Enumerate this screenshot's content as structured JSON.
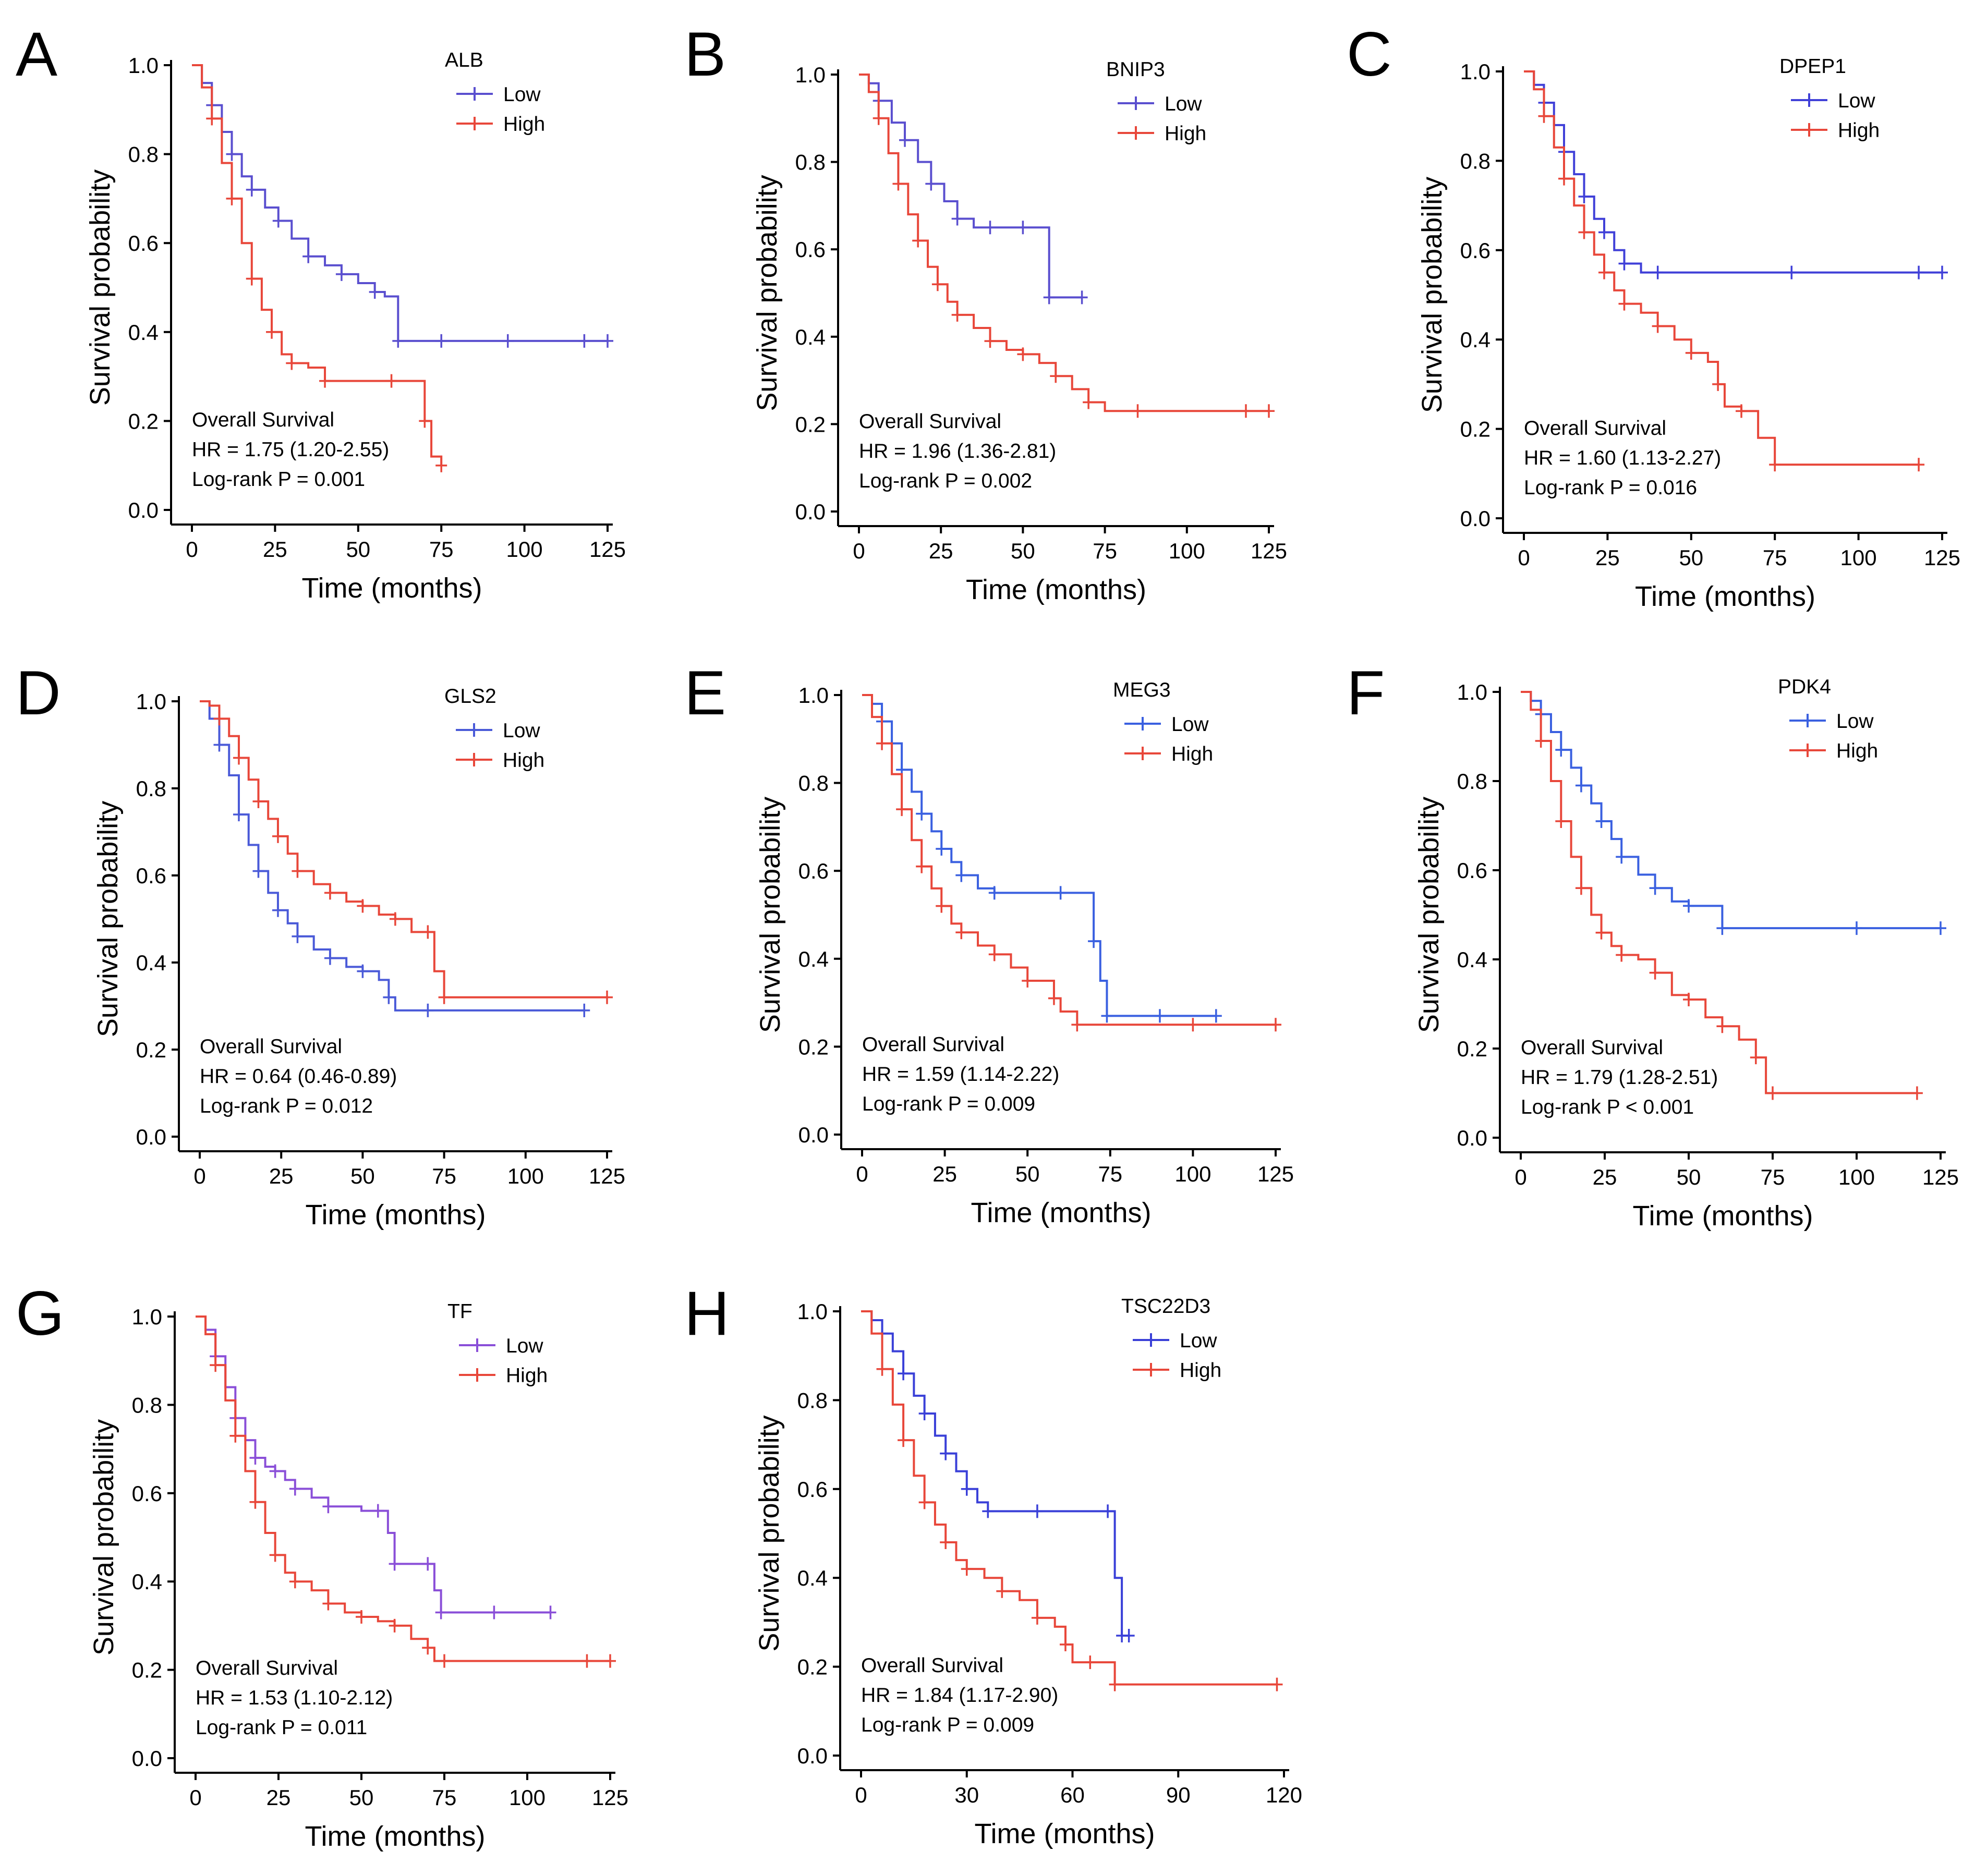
{
  "figure": {
    "shared": {
      "ylabel": "Survival probability",
      "xlabel": "Time (months)",
      "y_ticks": [
        "0.0",
        "0.2",
        "0.4",
        "0.6",
        "0.8",
        "1.0"
      ],
      "legend_low": "Low",
      "legend_high": "High",
      "stat_title": "Overall Survival"
    },
    "colors": {
      "low": "#5a4fcf",
      "high": "#e8473a"
    }
  },
  "chart_data": [
    {
      "panel": "A",
      "type": "line",
      "title": "ALB",
      "xlabel": "Time (months)",
      "ylabel": "Survival probability",
      "xlim": [
        0,
        125
      ],
      "ylim": [
        0,
        1
      ],
      "x_ticks": [
        0,
        25,
        50,
        75,
        100,
        125
      ],
      "legend": "top-right",
      "low_color": "#5a4fcf",
      "hr_text": "HR = 1.75 (1.20-2.55)",
      "p_text": "Log-rank P = 0.001",
      "series": [
        {
          "name": "Low",
          "x": [
            0,
            3,
            6,
            9,
            12,
            15,
            18,
            22,
            26,
            30,
            35,
            40,
            45,
            50,
            55,
            58,
            62,
            68,
            75,
            85,
            95,
            105,
            118,
            125
          ],
          "y": [
            1,
            0.96,
            0.91,
            0.85,
            0.8,
            0.75,
            0.72,
            0.68,
            0.65,
            0.61,
            0.57,
            0.55,
            0.53,
            0.51,
            0.49,
            0.48,
            0.38,
            0.38,
            0.38,
            0.38,
            0.38,
            0.38,
            0.38,
            0.38
          ]
        },
        {
          "name": "High",
          "x": [
            0,
            3,
            6,
            9,
            12,
            15,
            18,
            21,
            24,
            27,
            30,
            35,
            40,
            50,
            60,
            65,
            70,
            72,
            75
          ],
          "y": [
            1,
            0.95,
            0.88,
            0.78,
            0.7,
            0.6,
            0.52,
            0.45,
            0.4,
            0.35,
            0.33,
            0.32,
            0.29,
            0.29,
            0.29,
            0.29,
            0.2,
            0.12,
            0.1
          ]
        }
      ]
    },
    {
      "panel": "B",
      "type": "line",
      "title": "BNIP3",
      "xlabel": "Time (months)",
      "ylabel": "Survival probability",
      "xlim": [
        0,
        125
      ],
      "ylim": [
        0,
        1
      ],
      "x_ticks": [
        0,
        25,
        50,
        75,
        100,
        125
      ],
      "legend": "top-right",
      "low_color": "#5a4fcf",
      "hr_text": "HR = 1.96 (1.36-2.81)",
      "p_text": "Log-rank P = 0.002",
      "series": [
        {
          "name": "Low",
          "x": [
            0,
            3,
            6,
            10,
            14,
            18,
            22,
            26,
            30,
            35,
            40,
            45,
            50,
            55,
            58,
            62,
            68
          ],
          "y": [
            1,
            0.98,
            0.94,
            0.89,
            0.85,
            0.8,
            0.75,
            0.71,
            0.67,
            0.65,
            0.65,
            0.65,
            0.65,
            0.65,
            0.49,
            0.49,
            0.49
          ]
        },
        {
          "name": "High",
          "x": [
            0,
            3,
            6,
            9,
            12,
            15,
            18,
            21,
            24,
            27,
            30,
            35,
            40,
            45,
            50,
            55,
            60,
            65,
            70,
            75,
            85,
            100,
            118,
            125
          ],
          "y": [
            1,
            0.96,
            0.9,
            0.82,
            0.75,
            0.68,
            0.62,
            0.56,
            0.52,
            0.48,
            0.45,
            0.42,
            0.39,
            0.37,
            0.36,
            0.34,
            0.31,
            0.28,
            0.25,
            0.23,
            0.23,
            0.23,
            0.23,
            0.23
          ]
        }
      ]
    },
    {
      "panel": "C",
      "type": "line",
      "title": "DPEP1",
      "xlabel": "Time (months)",
      "ylabel": "Survival probability",
      "xlim": [
        0,
        125
      ],
      "ylim": [
        0,
        1
      ],
      "x_ticks": [
        0,
        25,
        50,
        75,
        100,
        125
      ],
      "legend": "top-right",
      "low_color": "#4040d8",
      "hr_text": "HR = 1.60 (1.13-2.27)",
      "p_text": "Log-rank P = 0.016",
      "series": [
        {
          "name": "Low",
          "x": [
            0,
            3,
            6,
            9,
            12,
            15,
            18,
            21,
            24,
            27,
            30,
            35,
            40,
            60,
            80,
            100,
            118,
            125
          ],
          "y": [
            1,
            0.97,
            0.93,
            0.88,
            0.82,
            0.77,
            0.72,
            0.67,
            0.64,
            0.6,
            0.57,
            0.55,
            0.55,
            0.55,
            0.55,
            0.55,
            0.55,
            0.55
          ]
        },
        {
          "name": "High",
          "x": [
            0,
            3,
            6,
            9,
            12,
            15,
            18,
            21,
            24,
            27,
            30,
            35,
            40,
            45,
            50,
            55,
            58,
            60,
            65,
            70,
            75,
            100,
            118
          ],
          "y": [
            1,
            0.96,
            0.9,
            0.83,
            0.76,
            0.7,
            0.64,
            0.59,
            0.55,
            0.51,
            0.48,
            0.46,
            0.43,
            0.4,
            0.37,
            0.35,
            0.3,
            0.25,
            0.24,
            0.18,
            0.12,
            0.12,
            0.12
          ]
        }
      ]
    },
    {
      "panel": "D",
      "type": "line",
      "title": "GLS2",
      "xlabel": "Time (months)",
      "ylabel": "Survival probability",
      "xlim": [
        0,
        125
      ],
      "ylim": [
        0,
        1
      ],
      "x_ticks": [
        0,
        25,
        50,
        75,
        100,
        125
      ],
      "legend": "top-right",
      "low_color": "#4a5ad8",
      "hr_text": "HR = 0.64 (0.46-0.89)",
      "p_text": "Log-rank P = 0.012",
      "series": [
        {
          "name": "Low",
          "x": [
            0,
            3,
            6,
            9,
            12,
            15,
            18,
            21,
            24,
            27,
            30,
            35,
            40,
            45,
            50,
            55,
            58,
            60,
            70,
            90,
            118
          ],
          "y": [
            1,
            0.96,
            0.9,
            0.83,
            0.74,
            0.67,
            0.61,
            0.56,
            0.52,
            0.49,
            0.46,
            0.43,
            0.41,
            0.39,
            0.38,
            0.36,
            0.32,
            0.29,
            0.29,
            0.29,
            0.29
          ]
        },
        {
          "name": "High",
          "x": [
            0,
            3,
            6,
            9,
            12,
            15,
            18,
            21,
            24,
            27,
            30,
            35,
            40,
            45,
            50,
            55,
            60,
            65,
            70,
            72,
            75,
            100,
            125
          ],
          "y": [
            1,
            0.99,
            0.96,
            0.92,
            0.87,
            0.82,
            0.77,
            0.73,
            0.69,
            0.65,
            0.61,
            0.58,
            0.56,
            0.54,
            0.53,
            0.51,
            0.5,
            0.47,
            0.47,
            0.38,
            0.32,
            0.32,
            0.32
          ]
        }
      ]
    },
    {
      "panel": "E",
      "type": "line",
      "title": "MEG3",
      "xlabel": "Time (months)",
      "ylabel": "Survival probability",
      "xlim": [
        0,
        125
      ],
      "ylim": [
        0,
        1
      ],
      "x_ticks": [
        0,
        25,
        50,
        75,
        100,
        125
      ],
      "legend": "top-right",
      "low_color": "#3a60e0",
      "hr_text": "HR = 1.59 (1.14-2.22)",
      "p_text": "Log-rank P = 0.009",
      "series": [
        {
          "name": "Low",
          "x": [
            0,
            3,
            6,
            9,
            12,
            15,
            18,
            21,
            24,
            27,
            30,
            35,
            40,
            50,
            60,
            65,
            70,
            72,
            74,
            80,
            90,
            100,
            107
          ],
          "y": [
            1,
            0.98,
            0.94,
            0.89,
            0.83,
            0.78,
            0.73,
            0.69,
            0.65,
            0.62,
            0.59,
            0.56,
            0.55,
            0.55,
            0.55,
            0.55,
            0.44,
            0.35,
            0.27,
            0.27,
            0.27,
            0.27,
            0.27
          ]
        },
        {
          "name": "High",
          "x": [
            0,
            3,
            6,
            9,
            12,
            15,
            18,
            21,
            24,
            27,
            30,
            35,
            40,
            45,
            50,
            55,
            58,
            60,
            65,
            75,
            100,
            118,
            125
          ],
          "y": [
            1,
            0.95,
            0.89,
            0.82,
            0.74,
            0.67,
            0.61,
            0.56,
            0.52,
            0.48,
            0.46,
            0.43,
            0.41,
            0.38,
            0.35,
            0.35,
            0.31,
            0.28,
            0.25,
            0.25,
            0.25,
            0.25,
            0.25
          ]
        }
      ]
    },
    {
      "panel": "F",
      "type": "line",
      "title": "PDK4",
      "xlabel": "Time (months)",
      "ylabel": "Survival probability",
      "xlim": [
        0,
        125
      ],
      "ylim": [
        0,
        1
      ],
      "x_ticks": [
        0,
        25,
        50,
        75,
        100,
        125
      ],
      "legend": "top-right",
      "low_color": "#3a60e0",
      "hr_text": "HR = 1.79 (1.28-2.51)",
      "p_text": "Log-rank P < 0.001",
      "series": [
        {
          "name": "Low",
          "x": [
            0,
            3,
            6,
            9,
            12,
            15,
            18,
            21,
            24,
            27,
            30,
            35,
            40,
            45,
            50,
            55,
            60,
            75,
            100,
            125
          ],
          "y": [
            1,
            0.98,
            0.95,
            0.91,
            0.87,
            0.83,
            0.79,
            0.75,
            0.71,
            0.67,
            0.63,
            0.59,
            0.56,
            0.53,
            0.52,
            0.52,
            0.47,
            0.47,
            0.47,
            0.47
          ]
        },
        {
          "name": "High",
          "x": [
            0,
            3,
            6,
            9,
            12,
            15,
            18,
            21,
            24,
            27,
            30,
            35,
            40,
            45,
            50,
            55,
            60,
            65,
            70,
            73,
            75,
            100,
            118
          ],
          "y": [
            1,
            0.96,
            0.89,
            0.8,
            0.71,
            0.63,
            0.56,
            0.5,
            0.46,
            0.43,
            0.41,
            0.4,
            0.37,
            0.32,
            0.31,
            0.27,
            0.25,
            0.22,
            0.18,
            0.1,
            0.1,
            0.1,
            0.1
          ]
        }
      ]
    },
    {
      "panel": "G",
      "type": "line",
      "title": "TF",
      "xlabel": "Time (months)",
      "ylabel": "Survival probability",
      "xlim": [
        0,
        125
      ],
      "ylim": [
        0,
        1
      ],
      "x_ticks": [
        0,
        25,
        50,
        75,
        100,
        125
      ],
      "legend": "top-right",
      "low_color": "#8a4fd8",
      "hr_text": "HR = 1.53 (1.10-2.12)",
      "p_text": "Log-rank P = 0.011",
      "series": [
        {
          "name": "Low",
          "x": [
            0,
            3,
            6,
            9,
            12,
            15,
            18,
            21,
            24,
            27,
            30,
            35,
            40,
            50,
            55,
            58,
            60,
            65,
            70,
            72,
            74,
            80,
            90,
            107
          ],
          "y": [
            1,
            0.97,
            0.91,
            0.84,
            0.77,
            0.72,
            0.68,
            0.66,
            0.65,
            0.63,
            0.61,
            0.59,
            0.57,
            0.56,
            0.56,
            0.51,
            0.44,
            0.44,
            0.44,
            0.38,
            0.33,
            0.33,
            0.33,
            0.33
          ]
        },
        {
          "name": "High",
          "x": [
            0,
            3,
            6,
            9,
            12,
            15,
            18,
            21,
            24,
            27,
            30,
            35,
            40,
            45,
            50,
            55,
            60,
            65,
            70,
            72,
            75,
            100,
            118,
            125
          ],
          "y": [
            1,
            0.96,
            0.89,
            0.81,
            0.73,
            0.65,
            0.58,
            0.51,
            0.46,
            0.42,
            0.4,
            0.38,
            0.35,
            0.33,
            0.32,
            0.31,
            0.3,
            0.27,
            0.25,
            0.22,
            0.22,
            0.22,
            0.22,
            0.22
          ]
        }
      ]
    },
    {
      "panel": "H",
      "type": "line",
      "title": "TSC22D3",
      "xlabel": "Time (months)",
      "ylabel": "Survival probability",
      "xlim": [
        0,
        120
      ],
      "ylim": [
        0,
        1
      ],
      "x_ticks": [
        0,
        30,
        60,
        90,
        120
      ],
      "legend": "top-right",
      "low_color": "#3a40d8",
      "hr_text": "HR = 1.84 (1.17-2.90)",
      "p_text": "Log-rank P = 0.009",
      "series": [
        {
          "name": "Low",
          "x": [
            0,
            3,
            6,
            9,
            12,
            15,
            18,
            21,
            24,
            27,
            30,
            33,
            36,
            40,
            50,
            60,
            70,
            72,
            74,
            76
          ],
          "y": [
            1,
            0.98,
            0.95,
            0.91,
            0.86,
            0.81,
            0.77,
            0.72,
            0.68,
            0.64,
            0.6,
            0.57,
            0.55,
            0.55,
            0.55,
            0.55,
            0.55,
            0.4,
            0.27,
            0.27
          ]
        },
        {
          "name": "High",
          "x": [
            0,
            3,
            6,
            9,
            12,
            15,
            18,
            21,
            24,
            27,
            30,
            35,
            40,
            45,
            50,
            55,
            58,
            60,
            65,
            70,
            72,
            90,
            118
          ],
          "y": [
            1,
            0.95,
            0.87,
            0.79,
            0.71,
            0.63,
            0.57,
            0.52,
            0.48,
            0.44,
            0.42,
            0.4,
            0.37,
            0.35,
            0.31,
            0.29,
            0.25,
            0.21,
            0.21,
            0.21,
            0.16,
            0.16,
            0.16
          ]
        }
      ]
    }
  ]
}
